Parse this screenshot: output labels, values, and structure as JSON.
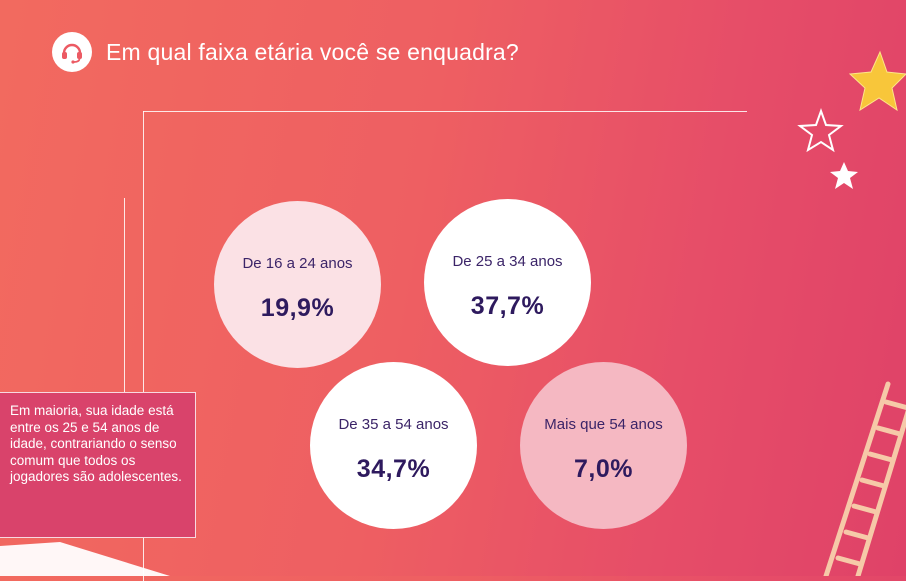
{
  "header": {
    "title": "Em qual faixa etária você se enquadra?",
    "icon": "headset-icon"
  },
  "chart_data": {
    "type": "bubble",
    "title": "Em qual faixa etária você se enquadra?",
    "categories": [
      "De 16 a 24 anos",
      "De 25 a 34 anos",
      "De 35 a 54 anos",
      "Mais que 54 anos"
    ],
    "labels": [
      "De 16 a 24 anos",
      "De 25 a 34 anos",
      "De 35 a 54 anos",
      "Mais que 54 anos"
    ],
    "values": [
      19.9,
      37.7,
      34.7,
      7.0
    ],
    "value_labels": [
      "19,9%",
      "37,7%",
      "34,7%",
      "7,0%"
    ],
    "unit": "%",
    "colors": [
      "#fbe1e5",
      "#ffffff",
      "#ffffff",
      "#f5b8c2"
    ]
  },
  "note": {
    "text": "Em maioria, sua idade está entre os 25 e 54 anos de idade, contrariando o senso comum que todos os jogadores são adolescentes."
  },
  "decorations": {
    "icons": [
      "gold-star-icon",
      "outline-star-icon",
      "white-star-icon",
      "ladder-icon"
    ],
    "star_color": "#f8c63a"
  }
}
